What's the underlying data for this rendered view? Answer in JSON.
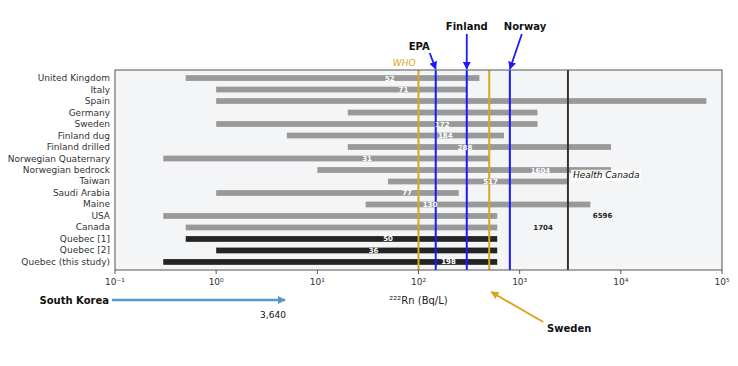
{
  "chart_data": {
    "type": "bar",
    "orientation": "horizontal",
    "log": "x",
    "grid": false,
    "categories": [
      "United Kingdom",
      "Italy",
      "Spain",
      "Germany",
      "Sweden",
      "Finland dug",
      "Finland drilled",
      "Norwegian Quaternary",
      "Norwegian bedrock",
      "Taiwan",
      "Saudi Arabia",
      "Maine",
      "USA",
      "Canada",
      "Quebec [1]",
      "Quebec [2]",
      "Quebec (this study)"
    ],
    "start": [
      0.5,
      1,
      1,
      20,
      1,
      5,
      20,
      0.3,
      10,
      50,
      1,
      30,
      0.3,
      0.5,
      0.5,
      1,
      0.3
    ],
    "end": [
      400,
      300,
      70000,
      1500,
      1500,
      700,
      8000,
      500,
      8000,
      3000,
      250,
      5000,
      600,
      600,
      600,
      600,
      600
    ],
    "medians": [
      52,
      71,
      null,
      null,
      172,
      184,
      288,
      31,
      1604,
      517,
      77,
      130,
      6596,
      1704,
      50,
      36,
      198
    ],
    "colors": [
      "#909090",
      "#909090",
      "#909090",
      "#909090",
      "#909090",
      "#909090",
      "#909090",
      "#909090",
      "#909090",
      "#909090",
      "#909090",
      "#909090",
      "#909090",
      "#909090",
      "#111111",
      "#111111",
      "#111111"
    ],
    "xlabel": "²²²Rn (Bq/L)",
    "xlim": [
      0.1,
      100000
    ],
    "xticks": [
      {
        "value": 0.1,
        "label": "10⁻¹"
      },
      {
        "value": 1,
        "label": "10⁰"
      },
      {
        "value": 10,
        "label": "10¹"
      },
      {
        "value": 100,
        "label": "10²"
      },
      {
        "value": 1000,
        "label": "10³"
      },
      {
        "value": 10000,
        "label": "10⁴"
      },
      {
        "value": 100000,
        "label": "10⁵"
      }
    ],
    "reference_lines": [
      {
        "x": 100,
        "color": "#DAA520",
        "label": "WHO"
      },
      {
        "x": 148,
        "color": "#1a1aff",
        "label": "EPA"
      },
      {
        "x": 300,
        "color": "#1a1aff",
        "label": "Finland"
      },
      {
        "x": 500,
        "color": "#DAA520",
        "label": "Sweden"
      },
      {
        "x": 800,
        "color": "#1a1aff",
        "label": "Norway"
      },
      {
        "x": 3000,
        "color": "#333333",
        "label": "Health Canada"
      }
    ],
    "annotations": [
      {
        "text": "South Korea"
      },
      {
        "text": "3,640"
      }
    ]
  }
}
